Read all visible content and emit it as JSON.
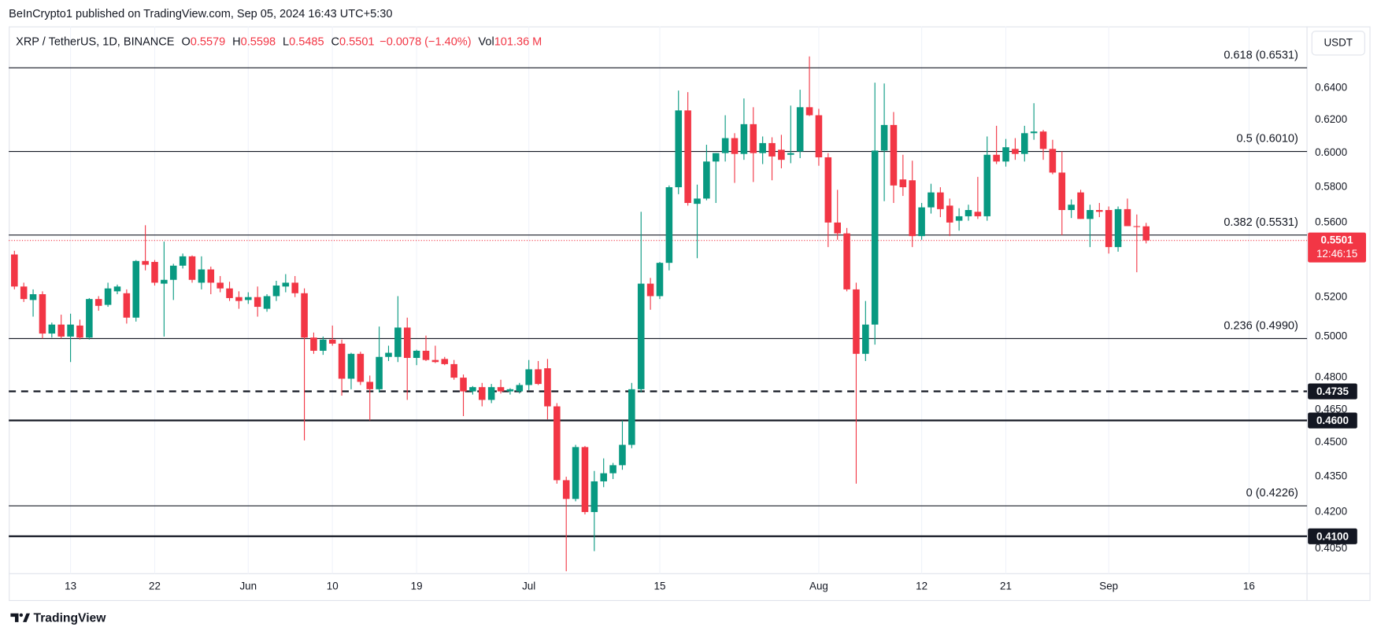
{
  "header": "BeInCrypto1 published on TradingView.com, Sep 05, 2024 16:43 UTC+5:30",
  "currency": "USDT",
  "brand": "TradingView",
  "legend": {
    "symbol": "XRP / TetherUS, 1D, BINANCE",
    "open_label": "O",
    "open": 0.5579,
    "high_label": "H",
    "high": 0.5598,
    "low_label": "L",
    "low": 0.5485,
    "close_label": "C",
    "close": 0.5501,
    "change": "−0.0078 (−1.40%)",
    "volume_label": "Vol",
    "volume": "101.36 M"
  },
  "chart_data": {
    "type": "candlestick",
    "log_scale": true,
    "grid": true,
    "up_color": "#089981",
    "down_color": "#f23645",
    "xlim": [
      -0.6,
      138.2
    ],
    "xticks": [
      {
        "value": 6,
        "label": "13"
      },
      {
        "value": 15,
        "label": "22"
      },
      {
        "value": 25,
        "label": "Jun"
      },
      {
        "value": 34,
        "label": "10"
      },
      {
        "value": 43,
        "label": "19"
      },
      {
        "value": 55,
        "label": "Jul"
      },
      {
        "value": 69,
        "label": "15"
      },
      {
        "value": 86,
        "label": "Aug"
      },
      {
        "value": 97,
        "label": "12"
      },
      {
        "value": 106,
        "label": "21"
      },
      {
        "value": 117,
        "label": "Sep"
      },
      {
        "value": 132,
        "label": "16"
      }
    ],
    "ylim": [
      0.3848,
      0.6805
    ],
    "yticks": [
      {
        "value": 0.64,
        "label": "0.6400"
      },
      {
        "value": 0.62,
        "label": "0.6200"
      },
      {
        "value": 0.6,
        "label": "0.6000"
      },
      {
        "value": 0.58,
        "label": "0.5800"
      },
      {
        "value": 0.56,
        "label": "0.5600"
      },
      {
        "value": 0.52,
        "label": "0.5200"
      },
      {
        "value": 0.5,
        "label": "0.5000"
      },
      {
        "value": 0.48,
        "label": "0.4800"
      },
      {
        "value": 0.465,
        "label": "0.4650"
      },
      {
        "value": 0.45,
        "label": "0.4500"
      },
      {
        "value": 0.435,
        "label": "0.4350"
      },
      {
        "value": 0.42,
        "label": "0.4200"
      },
      {
        "value": 0.405,
        "label": "0.4050"
      }
    ],
    "open": [
      0.5425,
      0.5255,
      0.5185,
      0.5215,
      0.5015,
      0.506,
      0.5,
      0.5055,
      0.4995,
      0.519,
      0.516,
      0.523,
      0.522,
      0.5095,
      0.539,
      0.5385,
      0.527,
      0.529,
      0.5365,
      0.5415,
      0.5275,
      0.5345,
      0.5275,
      0.5245,
      0.52,
      0.5185,
      0.52,
      0.514,
      0.5205,
      0.5255,
      0.5275,
      0.522,
      0.4995,
      0.493,
      0.4985,
      0.4965,
      0.4795,
      0.4915,
      0.478,
      0.4745,
      0.49,
      0.49,
      0.5045,
      0.4895,
      0.493,
      0.4885,
      0.489,
      0.4865,
      0.48,
      0.4735,
      0.4755,
      0.4695,
      0.4755,
      0.4735,
      0.4735,
      0.4765,
      0.484,
      0.4845,
      0.4665,
      0.4335,
      0.4255,
      0.448,
      0.42,
      0.433,
      0.4365,
      0.44,
      0.449,
      0.4745,
      0.527,
      0.5205,
      0.538,
      0.58,
      0.626,
      0.5705,
      0.5735,
      0.595,
      0.6,
      0.609,
      0.5995,
      0.6175,
      0.6,
      0.606,
      0.602,
      0.599,
      0.601,
      0.628,
      0.623,
      0.5975,
      0.56,
      0.554,
      0.524,
      0.4915,
      0.506,
      0.6015,
      0.617,
      0.5845,
      0.584,
      0.5525,
      0.5685,
      0.577,
      0.5695,
      0.561,
      0.5635,
      0.566,
      0.5635,
      0.599,
      0.595,
      0.6025,
      0.5995,
      0.612,
      0.613,
      0.6025,
      0.5885,
      0.567,
      0.577,
      0.562,
      0.567,
      0.567,
      0.5465,
      0.5675,
      0.558,
      0.5579
    ],
    "high": [
      0.5445,
      0.5275,
      0.524,
      0.523,
      0.507,
      0.511,
      0.5115,
      0.5085,
      0.5195,
      0.5205,
      0.5275,
      0.5265,
      0.524,
      0.5395,
      0.5585,
      0.5395,
      0.5495,
      0.5375,
      0.543,
      0.542,
      0.5415,
      0.536,
      0.531,
      0.528,
      0.523,
      0.5225,
      0.5255,
      0.5215,
      0.5285,
      0.532,
      0.531,
      0.5245,
      0.502,
      0.5,
      0.5055,
      0.4985,
      0.492,
      0.4925,
      0.481,
      0.505,
      0.4955,
      0.5205,
      0.5095,
      0.4935,
      0.5005,
      0.4955,
      0.49,
      0.4885,
      0.4815,
      0.476,
      0.4775,
      0.477,
      0.479,
      0.475,
      0.4775,
      0.4885,
      0.488,
      0.489,
      0.468,
      0.435,
      0.449,
      0.4485,
      0.4375,
      0.443,
      0.441,
      0.46,
      0.4775,
      0.566,
      0.53,
      0.5385,
      0.581,
      0.6385,
      0.6375,
      0.5815,
      0.605,
      0.6,
      0.623,
      0.612,
      0.6335,
      0.628,
      0.61,
      0.6095,
      0.611,
      0.629,
      0.639,
      0.6605,
      0.627,
      0.6,
      0.5785,
      0.557,
      0.5275,
      0.518,
      0.6435,
      0.643,
      0.625,
      0.599,
      0.5955,
      0.571,
      0.582,
      0.58,
      0.5735,
      0.568,
      0.57,
      0.586,
      0.61,
      0.6165,
      0.6085,
      0.609,
      0.6165,
      0.6305,
      0.614,
      0.608,
      0.601,
      0.573,
      0.5785,
      0.57,
      0.571,
      0.569,
      0.569,
      0.5735,
      0.5645,
      0.5598
    ],
    "low": [
      0.524,
      0.5175,
      0.51,
      0.499,
      0.4995,
      0.499,
      0.4875,
      0.4985,
      0.4985,
      0.513,
      0.515,
      0.5215,
      0.5065,
      0.5075,
      0.534,
      0.526,
      0.5,
      0.5185,
      0.535,
      0.5275,
      0.524,
      0.5215,
      0.5225,
      0.518,
      0.514,
      0.5165,
      0.51,
      0.5125,
      0.518,
      0.5225,
      0.52,
      0.451,
      0.4915,
      0.491,
      0.4955,
      0.4715,
      0.4745,
      0.4765,
      0.46,
      0.473,
      0.488,
      0.4875,
      0.4695,
      0.486,
      0.488,
      0.487,
      0.486,
      0.479,
      0.462,
      0.472,
      0.4665,
      0.468,
      0.4725,
      0.472,
      0.4725,
      0.474,
      0.4765,
      0.4605,
      0.432,
      0.396,
      0.4245,
      0.419,
      0.404,
      0.4305,
      0.434,
      0.438,
      0.4475,
      0.473,
      0.5135,
      0.519,
      0.534,
      0.576,
      0.5695,
      0.5405,
      0.5725,
      0.571,
      0.595,
      0.5825,
      0.596,
      0.583,
      0.5935,
      0.584,
      0.591,
      0.594,
      0.597,
      0.6225,
      0.5925,
      0.5465,
      0.5505,
      0.523,
      0.432,
      0.488,
      0.496,
      0.572,
      0.571,
      0.575,
      0.5465,
      0.5505,
      0.565,
      0.563,
      0.5525,
      0.5555,
      0.561,
      0.562,
      0.561,
      0.5935,
      0.592,
      0.596,
      0.595,
      0.608,
      0.596,
      0.5875,
      0.553,
      0.5625,
      0.562,
      0.5465,
      0.563,
      0.543,
      0.544,
      0.5585,
      0.533,
      0.5485
    ],
    "close": [
      0.5255,
      0.519,
      0.5215,
      0.5015,
      0.506,
      0.5,
      0.506,
      0.4995,
      0.519,
      0.5155,
      0.5245,
      0.5255,
      0.5095,
      0.539,
      0.537,
      0.5275,
      0.529,
      0.5365,
      0.5415,
      0.529,
      0.5345,
      0.5275,
      0.5245,
      0.5195,
      0.518,
      0.52,
      0.515,
      0.5205,
      0.526,
      0.5275,
      0.522,
      0.4995,
      0.493,
      0.4985,
      0.4965,
      0.4795,
      0.4915,
      0.478,
      0.4745,
      0.49,
      0.492,
      0.5045,
      0.4895,
      0.493,
      0.4885,
      0.4875,
      0.4865,
      0.48,
      0.4735,
      0.4755,
      0.4695,
      0.4755,
      0.4735,
      0.4745,
      0.4765,
      0.484,
      0.477,
      0.4665,
      0.4335,
      0.4255,
      0.448,
      0.42,
      0.433,
      0.4365,
      0.44,
      0.449,
      0.4745,
      0.527,
      0.5205,
      0.538,
      0.58,
      0.626,
      0.571,
      0.5735,
      0.595,
      0.6,
      0.609,
      0.5995,
      0.6175,
      0.6,
      0.606,
      0.598,
      0.596,
      0.6,
      0.628,
      0.623,
      0.5975,
      0.56,
      0.554,
      0.524,
      0.4915,
      0.506,
      0.6015,
      0.617,
      0.581,
      0.58,
      0.5525,
      0.5685,
      0.577,
      0.5675,
      0.56,
      0.5635,
      0.567,
      0.5635,
      0.599,
      0.595,
      0.6035,
      0.5995,
      0.612,
      0.613,
      0.6025,
      0.5885,
      0.567,
      0.57,
      0.562,
      0.567,
      0.566,
      0.5465,
      0.5675,
      0.558,
      0.5579,
      0.5501
    ],
    "fib_levels": [
      {
        "value": 0.6531,
        "label": "0.618 (0.6531)"
      },
      {
        "value": 0.601,
        "label": "0.5 (0.6010)"
      },
      {
        "value": 0.5531,
        "label": "0.382 (0.5531)"
      },
      {
        "value": 0.499,
        "label": "0.236 (0.4990)"
      },
      {
        "value": 0.4226,
        "label": "0 (0.4226)"
      }
    ],
    "support_levels": [
      {
        "value": 0.4735,
        "label": "0.4735",
        "style": "dashed"
      },
      {
        "value": 0.46,
        "label": "0.4600",
        "style": "solid"
      },
      {
        "value": 0.41,
        "label": "0.4100",
        "style": "solid"
      }
    ],
    "last_price": {
      "value": 0.5501,
      "countdown": "12:46:15",
      "color": "#f23645"
    }
  }
}
